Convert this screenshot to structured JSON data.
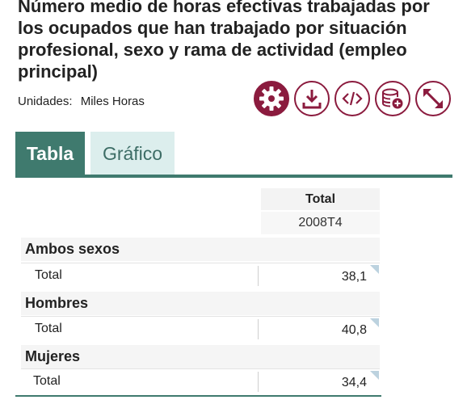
{
  "title": "Número medio de horas efectivas trabajadas por los ocupados que han trabajado por situación profesional, sexo y rama de actividad (empleo principal)",
  "units": {
    "label": "Unidades:",
    "value": "Miles Horas"
  },
  "toolbar": [
    {
      "icon": "gear-icon"
    },
    {
      "icon": "download-icon"
    },
    {
      "icon": "code-icon"
    },
    {
      "icon": "database-add-icon"
    },
    {
      "icon": "expand-icon"
    }
  ],
  "tabs": [
    {
      "label": "Tabla",
      "active": true
    },
    {
      "label": "Gráfico",
      "active": false
    }
  ],
  "table": {
    "column_header": "Total",
    "period": "2008T4",
    "sections": [
      {
        "name": "Ambos sexos",
        "row_label": "Total",
        "value": "38,1"
      },
      {
        "name": "Hombres",
        "row_label": "Total",
        "value": "40,8"
      },
      {
        "name": "Mujeres",
        "row_label": "Total",
        "value": "34,4"
      }
    ]
  },
  "colors": {
    "accent": "#8b1b3e",
    "tab_active": "#3f7a6e",
    "tab_inactive": "#dceeed"
  }
}
